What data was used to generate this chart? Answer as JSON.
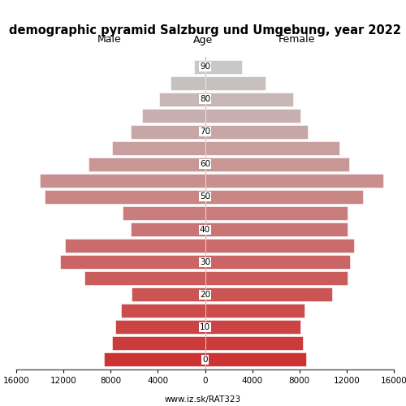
{
  "title": "demographic pyramid Salzburg und Umgebung, year 2022",
  "male_label": "Male",
  "female_label": "Female",
  "age_label": "Age",
  "url": "www.iz.sk/RAT323",
  "age_groups": [
    0,
    5,
    10,
    15,
    20,
    25,
    30,
    35,
    40,
    45,
    50,
    55,
    60,
    65,
    70,
    75,
    80,
    85,
    90
  ],
  "male_values": [
    8600,
    7900,
    7600,
    7100,
    6200,
    10200,
    12300,
    11900,
    6300,
    7000,
    13600,
    14000,
    9900,
    7900,
    6300,
    5300,
    3900,
    2900,
    950
  ],
  "female_values": [
    8600,
    8300,
    8100,
    8400,
    10800,
    12100,
    12300,
    12600,
    12100,
    12100,
    13400,
    15100,
    12200,
    11400,
    8700,
    8100,
    7500,
    5100,
    3100
  ],
  "xlim": 16000,
  "bar_height": 0.85,
  "bg_color": "#ffffff",
  "spine_color": "#555555",
  "xtick_positions": [
    -16000,
    -12000,
    -8000,
    -4000,
    0,
    4000,
    8000,
    12000,
    16000
  ],
  "xtick_labels": [
    "16000",
    "12000",
    "8000",
    "4000",
    "0",
    "4000",
    "8000",
    "12000",
    "16000"
  ]
}
